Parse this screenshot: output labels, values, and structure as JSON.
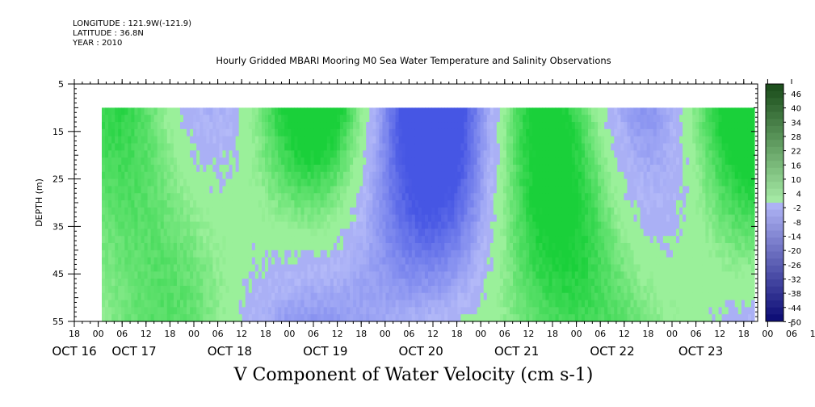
{
  "header": {
    "longitude": "LONGITUDE : 121.9W(-121.9)",
    "latitude": "LATITUDE : 36.8N",
    "year": "YEAR : 2010"
  },
  "chart_data": {
    "type": "heatmap",
    "title": "Hourly Gridded MBARI Mooring M0 Sea Water Temperature and Salinity Observations",
    "xlabel": "V Component of Water Velocity (cm s-1)",
    "ylabel": "DEPTH (m)",
    "ylim": [
      55,
      5
    ],
    "y_ticks": [
      5,
      15,
      25,
      35,
      45,
      55
    ],
    "data_depth_range": [
      10,
      55
    ],
    "x_hour_ticks": [
      "18",
      "00",
      "06",
      "12",
      "18",
      "00",
      "06",
      "12",
      "18",
      "00",
      "06",
      "12",
      "18",
      "00",
      "06",
      "12",
      "18",
      "00",
      "06",
      "12",
      "18",
      "00",
      "06",
      "12",
      "18",
      "00",
      "06",
      "12",
      "18",
      "00",
      "06",
      "12",
      "18"
    ],
    "x_date_labels": [
      "OCT 16",
      "OCT 17",
      "OCT 18",
      "OCT 19",
      "OCT 20",
      "OCT 21",
      "OCT 22",
      "OCT 23"
    ],
    "colorbar": {
      "labels": [
        "46",
        "40",
        "34",
        "28",
        "22",
        "16",
        "10",
        "4",
        "-2",
        "-8",
        "-14",
        "-20",
        "-26",
        "-32",
        "-38",
        "-44",
        "-50"
      ],
      "range": [
        -50,
        52
      ],
      "negative_color": "#aab0f5",
      "positive_color": "#9af09a",
      "strong_positive_color": "#1ad03a"
    },
    "pattern": "vertical bands of alternating positive (green) and negative (blue) velocity over time across all depths"
  }
}
